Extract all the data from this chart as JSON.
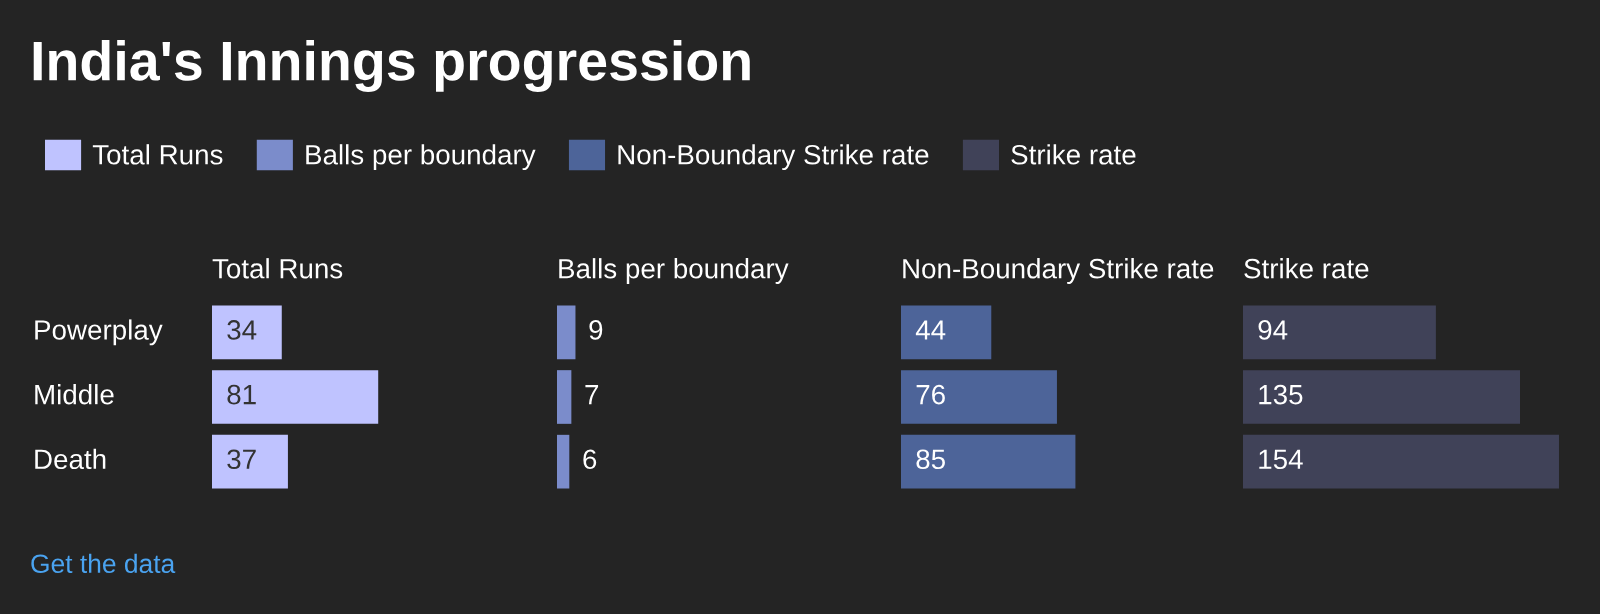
{
  "chart_data": [
    {
      "type": "bar",
      "orientation": "horizontal",
      "title": "India's Innings progression",
      "annotations": [
        "Get the data"
      ],
      "legend": "top",
      "tick_labels": "y",
      "data_labels": true,
      "categories": [
        "Powerplay",
        "Middle",
        "Death"
      ],
      "series": [
        {
          "name": "Total Runs",
          "color": "#bfc3ff",
          "values": [
            34,
            81,
            37
          ]
        }
      ]
    },
    {
      "type": "bar",
      "orientation": "horizontal",
      "legend": "top",
      "tick_labels": false,
      "data_labels": true,
      "series": [
        {
          "name": "Balls per boundary",
          "color": "#7b8ccb",
          "values": [
            9,
            7,
            6
          ]
        }
      ]
    },
    {
      "type": "bar",
      "orientation": "horizontal",
      "legend": "top",
      "tick_labels": false,
      "data_labels": true,
      "series": [
        {
          "name": "Non-Boundary Strike rate",
          "color": "#4d6499",
          "values": [
            44,
            76,
            85
          ]
        }
      ]
    },
    {
      "type": "bar",
      "orientation": "horizontal",
      "legend": "top",
      "tick_labels": false,
      "data_labels": true,
      "series": [
        {
          "name": "Strike rate",
          "color": "#404258",
          "values": [
            94,
            135,
            154
          ]
        }
      ]
    }
  ]
}
